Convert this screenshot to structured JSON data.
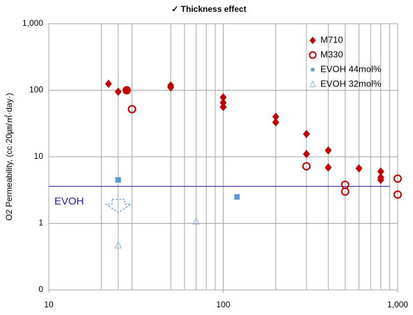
{
  "chart_data": {
    "type": "scatter",
    "title": "✓ Thickness effect",
    "y_label": "O2 Permeability, (cc·20㎛/㎡·day·)",
    "xlog": true,
    "ylog": true,
    "xlim": [
      10,
      1000
    ],
    "xticks": [
      10,
      100,
      {
        "value": 1000,
        "label": "1,000"
      }
    ],
    "x_grid": [
      20,
      25,
      30,
      50,
      60,
      70,
      80,
      90,
      100,
      200,
      300,
      400,
      500,
      600,
      700,
      800,
      900
    ],
    "ylim": [
      0.1,
      1000
    ],
    "yticks": [
      {
        "value": 0.1,
        "label": "0"
      },
      1,
      10,
      100,
      {
        "value": 1000,
        "label": "1,000"
      }
    ],
    "grid": true,
    "legend": "upper right",
    "reference_line": {
      "value": 3.6,
      "label": "EVOH",
      "color": "#1f1f9f"
    },
    "series": [
      {
        "name": "M710",
        "color": "#c00000",
        "marker": "diamond",
        "x": [
          22,
          25,
          28,
          50,
          50,
          100,
          100,
          100,
          200,
          200,
          300,
          300,
          400,
          400,
          600,
          800,
          800,
          800
        ],
        "values": [
          125,
          95,
          100,
          118,
          110,
          78,
          65,
          56,
          40,
          33,
          22,
          11,
          12.5,
          6.9,
          6.7,
          6,
          4.9,
          4.5
        ]
      },
      {
        "name": "M330",
        "color": "#c00000",
        "marker": "circle-open",
        "x": [
          28,
          30,
          300,
          500,
          500,
          1000,
          1000
        ],
        "values": [
          100,
          52,
          7.2,
          3.8,
          3.0,
          4.7,
          2.7
        ]
      },
      {
        "name": "EVOH 44mol%",
        "color": "#5b9bd5",
        "marker": "square",
        "x": [
          25,
          120
        ],
        "values": [
          4.5,
          2.5
        ]
      },
      {
        "name": "EVOH 32mol%",
        "color": "#8fb4de",
        "marker": "triangle-open",
        "x": [
          25,
          70
        ],
        "values": [
          0.47,
          1.07
        ]
      }
    ]
  }
}
